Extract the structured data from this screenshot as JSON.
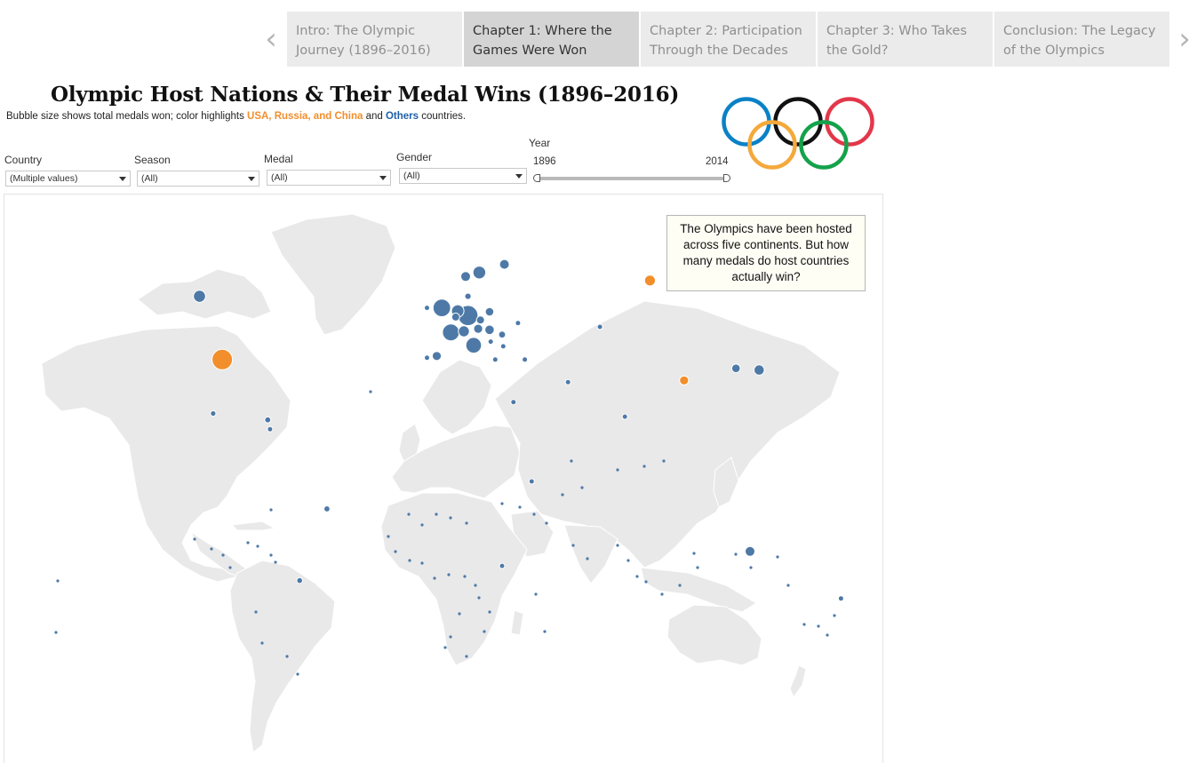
{
  "story": {
    "prev_arrow": "‹",
    "next_arrow": "›",
    "tabs": [
      {
        "label": "Intro: The Olympic Journey (1896–2016)",
        "active": false
      },
      {
        "label": "Chapter 1: Where the Games Were Won",
        "active": true
      },
      {
        "label": "Chapter 2: Participation Through the Decades",
        "active": false
      },
      {
        "label": "Chapter 3: Who Takes the Gold?",
        "active": false
      },
      {
        "label": "Conclusion: The Legacy of the Olympics",
        "active": false
      }
    ]
  },
  "header": {
    "title": "Olympic Host Nations & Their Medal Wins (1896–2016)",
    "subtitle_pre": "Bubble size shows total medals won; color highlights ",
    "subtitle_highlight": "USA, Russia, and China",
    "subtitle_mid": " and ",
    "subtitle_others": "Others",
    "subtitle_post": " countries."
  },
  "filters": {
    "country": {
      "label": "Country",
      "value": "(Multiple values)"
    },
    "season": {
      "label": "Season",
      "value": "(All)"
    },
    "medal": {
      "label": "Medal",
      "value": "(All)"
    },
    "gender": {
      "label": "Gender",
      "value": "(All)"
    },
    "year": {
      "label": "Year",
      "min": "1896",
      "max": "2014"
    }
  },
  "callout": "The Olympics have been hosted across five continents. But how many medals do host countries actually win?",
  "colors": {
    "highlight": "#f28e2b",
    "others": "#4e79a7",
    "land": "#e9e9e9",
    "ring_blue": "#0a81c6",
    "ring_black": "#111111",
    "ring_red": "#e3374a",
    "ring_yellow": "#f4a93b",
    "ring_green": "#14a24a"
  },
  "icons": {
    "logo": "olympic-rings-icon"
  },
  "map_data": {
    "type": "bubble-map",
    "legend_groups": [
      "USA, Russia, and China",
      "Others"
    ],
    "bubbles": [
      {
        "country": "USA",
        "group": "highlight",
        "lat": 39,
        "lon": -98,
        "medals": 5200
      },
      {
        "country": "Russia",
        "group": "highlight",
        "lat": 60,
        "lon": 90,
        "medals": 1450
      },
      {
        "country": "China",
        "group": "highlight",
        "lat": 33,
        "lon": 105,
        "medals": 1000
      },
      {
        "country": "Canada",
        "group": "others",
        "lat": 56,
        "lon": -108,
        "medals": 1800
      },
      {
        "country": "Mexico",
        "group": "others",
        "lat": 23,
        "lon": -102,
        "medals": 380
      },
      {
        "country": "Brazil",
        "group": "others",
        "lat": -10,
        "lon": -52,
        "medals": 460
      },
      {
        "country": "Argentina",
        "group": "others",
        "lat": -35,
        "lon": -64,
        "medals": 420
      },
      {
        "country": "Cuba",
        "group": "others",
        "lat": 21,
        "lon": -78,
        "medals": 450
      },
      {
        "country": "UK",
        "group": "others",
        "lat": 53,
        "lon": -1.5,
        "medals": 3800
      },
      {
        "country": "France",
        "group": "others",
        "lat": 46.5,
        "lon": 2.5,
        "medals": 3500
      },
      {
        "country": "Germany",
        "group": "others",
        "lat": 51,
        "lon": 10,
        "medals": 5000
      },
      {
        "country": "Italy",
        "group": "others",
        "lat": 43,
        "lon": 12.5,
        "medals": 3000
      },
      {
        "country": "Netherlands",
        "group": "others",
        "lat": 52.2,
        "lon": 5.5,
        "medals": 1900
      },
      {
        "country": "Belgium",
        "group": "others",
        "lat": 50.6,
        "lon": 4.6,
        "medals": 800
      },
      {
        "country": "Switzerland",
        "group": "others",
        "lat": 46.8,
        "lon": 8.2,
        "medals": 1500
      },
      {
        "country": "Austria",
        "group": "others",
        "lat": 47.5,
        "lon": 14.5,
        "medals": 1000
      },
      {
        "country": "Sweden",
        "group": "others",
        "lat": 62,
        "lon": 15,
        "medals": 2000
      },
      {
        "country": "Norway",
        "group": "others",
        "lat": 61,
        "lon": 9,
        "medals": 1200
      },
      {
        "country": "Finland",
        "group": "others",
        "lat": 64,
        "lon": 26,
        "medals": 1200
      },
      {
        "country": "Denmark",
        "group": "others",
        "lat": 56,
        "lon": 10,
        "medals": 500
      },
      {
        "country": "Poland",
        "group": "others",
        "lat": 52,
        "lon": 19.5,
        "medals": 900
      },
      {
        "country": "Czechia",
        "group": "others",
        "lat": 49.8,
        "lon": 15.5,
        "medals": 800
      },
      {
        "country": "Hungary",
        "group": "others",
        "lat": 47.2,
        "lon": 19.5,
        "medals": 1100
      },
      {
        "country": "Romania",
        "group": "others",
        "lat": 45.9,
        "lon": 25,
        "medals": 600
      },
      {
        "country": "Spain",
        "group": "others",
        "lat": 40,
        "lon": -3.7,
        "medals": 1000
      },
      {
        "country": "Portugal",
        "group": "others",
        "lat": 39.5,
        "lon": -8,
        "medals": 60
      },
      {
        "country": "Ireland",
        "group": "others",
        "lat": 53,
        "lon": -8,
        "medals": 60
      },
      {
        "country": "Greece",
        "group": "others",
        "lat": 39,
        "lon": 22,
        "medals": 200
      },
      {
        "country": "Yugoslavia",
        "group": "others",
        "lat": 44,
        "lon": 20,
        "medals": 250
      },
      {
        "country": "Bulgaria",
        "group": "others",
        "lat": 42.7,
        "lon": 25.5,
        "medals": 300
      },
      {
        "country": "Ukraine",
        "group": "others",
        "lat": 49,
        "lon": 32,
        "medals": 300
      },
      {
        "country": "Turkey",
        "group": "others",
        "lat": 39,
        "lon": 35,
        "medals": 100
      },
      {
        "country": "Japan",
        "group": "others",
        "lat": 36,
        "lon": 138,
        "medals": 1300
      },
      {
        "country": "South Korea",
        "group": "others",
        "lat": 36.5,
        "lon": 127.8,
        "medals": 900
      },
      {
        "country": "Australia",
        "group": "others",
        "lat": -25,
        "lon": 134,
        "medals": 1200
      },
      {
        "country": "New Zealand",
        "group": "others",
        "lat": -41,
        "lon": 174,
        "medals": 250
      },
      {
        "country": "South Africa",
        "group": "others",
        "lat": -30,
        "lon": 25,
        "medals": 140
      },
      {
        "country": "Kenya",
        "group": "others",
        "lat": 0,
        "lon": 38,
        "medals": 100
      },
      {
        "country": "India",
        "group": "others",
        "lat": 22,
        "lon": 79,
        "medals": 140
      },
      {
        "country": "Iran",
        "group": "others",
        "lat": 32.5,
        "lon": 54,
        "medals": 80
      },
      {
        "country": "Kazakhstan",
        "group": "others",
        "lat": 48,
        "lon": 68,
        "medals": 70
      },
      {
        "country": "Jamaica",
        "group": "others",
        "lat": 18,
        "lon": -77,
        "medals": 150
      },
      {
        "country": "Egypt",
        "group": "others",
        "lat": 26.5,
        "lon": 30,
        "medals": 40
      }
    ]
  }
}
